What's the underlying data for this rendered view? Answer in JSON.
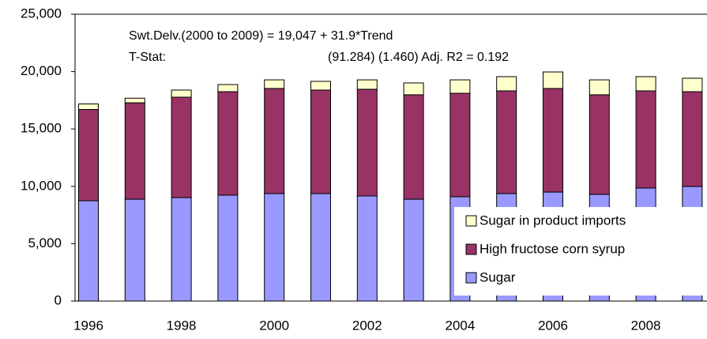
{
  "chart_data": {
    "type": "stacked_bar",
    "annotations": [
      "Swt.Delv.(2000 to 2009) = 19,047 +  31.9*Trend",
      "T-Stat:",
      "(91.284)  (1.460)  Adj. R2 = 0.192"
    ],
    "categories": [
      "1996",
      null,
      "1998",
      null,
      "2000",
      null,
      "2002",
      null,
      "2004",
      null,
      "2006",
      null,
      "2008",
      null
    ],
    "series": [
      {
        "name": "Sugar",
        "color": "#9999ff",
        "values": [
          8750,
          8880,
          9020,
          9230,
          9370,
          9370,
          9160,
          8880,
          9090,
          9370,
          9500,
          9300,
          9850,
          9990
        ]
      },
      {
        "name": "High fructose corn syrup",
        "color": "#993366",
        "values": [
          7950,
          8400,
          8750,
          9020,
          9160,
          9020,
          9300,
          9100,
          9020,
          8950,
          9030,
          8680,
          8470,
          8260
        ]
      },
      {
        "name": "Sugar in product imports",
        "color": "#ffffcc",
        "values": [
          480,
          400,
          620,
          620,
          750,
          760,
          820,
          1030,
          1170,
          1240,
          1440,
          1300,
          1240,
          1170
        ]
      }
    ],
    "ylim": [
      0,
      25000
    ],
    "yticks": [
      {
        "value": 0,
        "label": "0"
      },
      {
        "value": 5000,
        "label": "5,000"
      },
      {
        "value": 10000,
        "label": "10,000"
      },
      {
        "value": 15000,
        "label": "15,000"
      },
      {
        "value": 20000,
        "label": "20,000"
      },
      {
        "value": 25000,
        "label": "25,000"
      }
    ],
    "legend": "bottom-right"
  }
}
